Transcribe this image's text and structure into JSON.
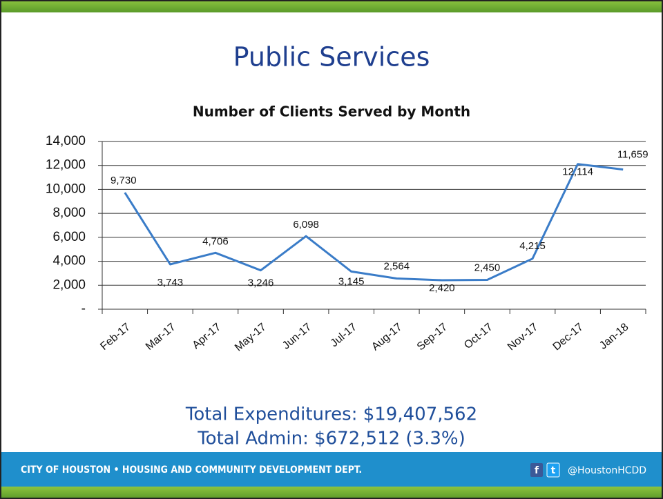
{
  "header": {
    "title": "Public Services"
  },
  "chart_data": {
    "type": "line",
    "title": "Number of Clients Served by Month",
    "categories": [
      "Feb-17",
      "Mar-17",
      "Apr-17",
      "May-17",
      "Jun-17",
      "Jul-17",
      "Aug-17",
      "Sep-17",
      "Oct-17",
      "Nov-17",
      "Dec-17",
      "Jan-18"
    ],
    "values": [
      9730,
      3743,
      4706,
      3246,
      6098,
      3145,
      2564,
      2420,
      2450,
      4215,
      12114,
      11659
    ],
    "value_labels": [
      "9,730",
      "3,743",
      "4,706",
      "3,246",
      "6,098",
      "3,145",
      "2,564",
      "2,420",
      "2,450",
      "4,215",
      "12,114",
      "11,659"
    ],
    "color": "#3a7cc8",
    "ylim": [
      0,
      14000
    ],
    "yticks": [
      {
        "value": 0,
        "label": "-"
      },
      {
        "value": 2000,
        "label": "2,000"
      },
      {
        "value": 4000,
        "label": "4,000"
      },
      {
        "value": 6000,
        "label": "6,000"
      },
      {
        "value": 8000,
        "label": "8,000"
      },
      {
        "value": 10000,
        "label": "10,000"
      },
      {
        "value": 12000,
        "label": "12,000"
      },
      {
        "value": 14000,
        "label": "14,000"
      }
    ],
    "grid": true
  },
  "summary": [
    "Total Expenditures: $19,407,562",
    "Total Admin: $672,512 (3.3%)"
  ],
  "footer": {
    "department": "CITY OF HOUSTON • HOUSING AND COMMUNITY DEVELOPMENT DEPT.",
    "social_icons": [
      "f",
      "t"
    ],
    "handle": "@HoustonHCDD"
  }
}
